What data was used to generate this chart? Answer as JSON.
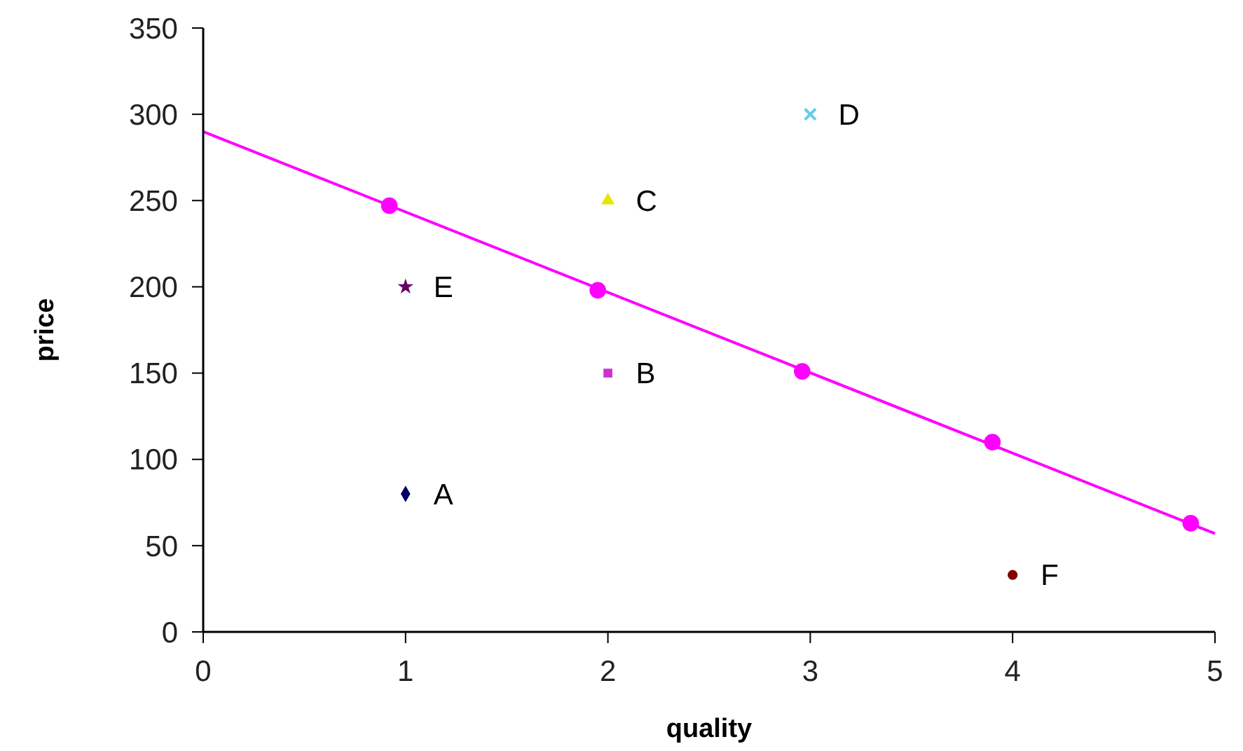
{
  "chart_data": {
    "type": "scatter",
    "xlabel": "quality",
    "ylabel": "price",
    "xlim": [
      0,
      5
    ],
    "ylim": [
      0,
      350
    ],
    "xticks": [
      0,
      1,
      2,
      3,
      4,
      5
    ],
    "yticks": [
      0,
      50,
      100,
      150,
      200,
      250,
      300,
      350
    ],
    "grid": false,
    "legend": false,
    "series": [
      {
        "name": "A",
        "color": "#000066",
        "marker": "diamond",
        "x": [
          1
        ],
        "values": [
          80
        ]
      },
      {
        "name": "B",
        "color": "#cc33cc",
        "marker": "square",
        "x": [
          2
        ],
        "values": [
          150
        ]
      },
      {
        "name": "C",
        "color": "#e6e600",
        "marker": "triangle",
        "x": [
          2
        ],
        "values": [
          250
        ]
      },
      {
        "name": "D",
        "color": "#66ccee",
        "marker": "cross",
        "x": [
          3
        ],
        "values": [
          300
        ]
      },
      {
        "name": "E",
        "color": "#660066",
        "marker": "star",
        "x": [
          1
        ],
        "values": [
          200
        ]
      },
      {
        "name": "F",
        "color": "#800000",
        "marker": "circle",
        "x": [
          4
        ],
        "values": [
          33
        ]
      },
      {
        "type": "line",
        "color": "#ff00ff",
        "marker": "none",
        "x": [
          0,
          5
        ],
        "values": [
          290,
          57
        ]
      },
      {
        "color": "#ff00ff",
        "marker": "circle",
        "x": [
          0.92,
          1.95,
          2.96,
          3.9,
          4.88
        ],
        "values": [
          247,
          198,
          151,
          110,
          63
        ]
      }
    ]
  }
}
